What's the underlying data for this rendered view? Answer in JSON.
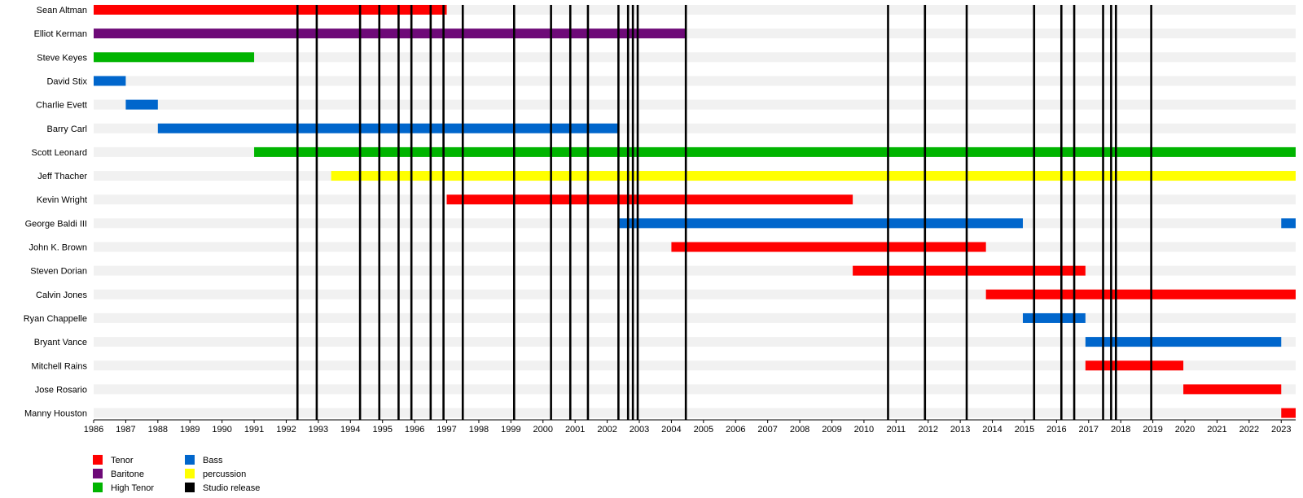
{
  "chart_data": {
    "type": "timeline",
    "title": "",
    "xlabel": "",
    "ylabel": "",
    "xlim": [
      1986,
      2023.45
    ],
    "x_ticks": [
      "1986",
      "1987",
      "1988",
      "1989",
      "1990",
      "1991",
      "1992",
      "1993",
      "1994",
      "1995",
      "1996",
      "1997",
      "1998",
      "1999",
      "2000",
      "2001",
      "2002",
      "2003",
      "2004",
      "2005",
      "2006",
      "2007",
      "2008",
      "2009",
      "2010",
      "2011",
      "2012",
      "2013",
      "2014",
      "2015",
      "2016",
      "2017",
      "2018",
      "2019",
      "2020",
      "2021",
      "2022",
      "2023"
    ],
    "roles": {
      "Tenor": "#ff0000",
      "Baritone": "#6e0a78",
      "High Tenor": "#00b400",
      "Bass": "#0066cc",
      "percussion": "#ffff00",
      "Studio release": "#000000"
    },
    "members": [
      {
        "name": "Sean Altman",
        "bars": [
          {
            "start": 1986.0,
            "end": 1997.0,
            "role": "Tenor"
          }
        ]
      },
      {
        "name": "Elliot Kerman",
        "bars": [
          {
            "start": 1986.0,
            "end": 2004.45,
            "role": "Baritone"
          }
        ]
      },
      {
        "name": "Steve Keyes",
        "bars": [
          {
            "start": 1986.0,
            "end": 1991.0,
            "role": "High Tenor"
          }
        ]
      },
      {
        "name": "David Stix",
        "bars": [
          {
            "start": 1986.0,
            "end": 1987.0,
            "role": "Bass"
          }
        ]
      },
      {
        "name": "Charlie Evett",
        "bars": [
          {
            "start": 1987.0,
            "end": 1988.0,
            "role": "Bass"
          }
        ]
      },
      {
        "name": "Barry Carl",
        "bars": [
          {
            "start": 1988.0,
            "end": 2002.35,
            "role": "Bass"
          }
        ]
      },
      {
        "name": "Scott Leonard",
        "bars": [
          {
            "start": 1991.0,
            "end": 2023.45,
            "role": "High Tenor"
          }
        ]
      },
      {
        "name": "Jeff Thacher",
        "bars": [
          {
            "start": 1993.4,
            "end": 2023.45,
            "role": "percussion"
          }
        ]
      },
      {
        "name": "Kevin Wright",
        "bars": [
          {
            "start": 1997.0,
            "end": 2009.65,
            "role": "Tenor"
          }
        ]
      },
      {
        "name": "George Baldi III",
        "bars": [
          {
            "start": 2002.35,
            "end": 2014.95,
            "role": "Bass"
          },
          {
            "start": 2023.0,
            "end": 2023.45,
            "role": "Bass"
          }
        ]
      },
      {
        "name": "John K. Brown",
        "bars": [
          {
            "start": 2004.0,
            "end": 2013.8,
            "role": "Tenor"
          }
        ]
      },
      {
        "name": "Steven Dorian",
        "bars": [
          {
            "start": 2009.65,
            "end": 2016.9,
            "role": "Tenor"
          }
        ]
      },
      {
        "name": "Calvin Jones",
        "bars": [
          {
            "start": 2013.8,
            "end": 2023.45,
            "role": "Tenor"
          }
        ]
      },
      {
        "name": "Ryan Chappelle",
        "bars": [
          {
            "start": 2014.95,
            "end": 2016.9,
            "role": "Bass"
          }
        ]
      },
      {
        "name": "Bryant Vance",
        "bars": [
          {
            "start": 2016.9,
            "end": 2023.0,
            "role": "Bass"
          }
        ]
      },
      {
        "name": "Mitchell Rains",
        "bars": [
          {
            "start": 2016.9,
            "end": 2019.95,
            "role": "Tenor"
          }
        ]
      },
      {
        "name": "Jose Rosario",
        "bars": [
          {
            "start": 2019.95,
            "end": 2023.0,
            "role": "Tenor"
          }
        ]
      },
      {
        "name": "Manny Houston",
        "bars": [
          {
            "start": 2023.0,
            "end": 2023.45,
            "role": "Tenor"
          }
        ]
      }
    ],
    "studio_releases": [
      1992.35,
      1992.95,
      1994.3,
      1994.9,
      1995.5,
      1995.9,
      1996.5,
      1996.9,
      1997.5,
      1999.1,
      2000.25,
      2000.85,
      2001.4,
      2002.35,
      2002.65,
      2002.8,
      2002.95,
      2004.45,
      2010.75,
      2011.9,
      2013.2,
      2015.3,
      2016.15,
      2016.55,
      2017.45,
      2017.7,
      2017.85,
      2018.95
    ],
    "legend": {
      "placement": "bottom-left",
      "items": [
        "Tenor",
        "Baritone",
        "High Tenor",
        "Bass",
        "percussion",
        "Studio release"
      ]
    },
    "grid": false
  }
}
